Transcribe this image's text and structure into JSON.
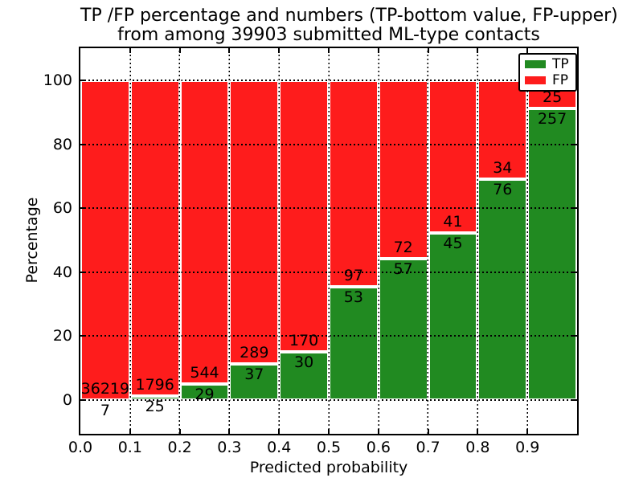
{
  "title": {
    "line1": "TP /FP percentage and numbers (TP-bottom value, FP-upper)",
    "line2": "from among 39903 submitted ML-type contacts"
  },
  "chart_data": {
    "type": "bar",
    "stacked": true,
    "normalized": "each bin stacked to 100%",
    "total_contacts": 39903,
    "bins": [
      "0.0-0.1",
      "0.1-0.2",
      "0.2-0.3",
      "0.3-0.4",
      "0.4-0.5",
      "0.5-0.6",
      "0.6-0.7",
      "0.7-0.8",
      "0.8-0.9",
      "0.9-1.0"
    ],
    "series": [
      {
        "name": "TP",
        "color": "#218a21",
        "counts": [
          7,
          25,
          29,
          37,
          30,
          53,
          57,
          45,
          76,
          257
        ]
      },
      {
        "name": "FP",
        "color": "#fe1c1c",
        "counts": [
          36219,
          1796,
          544,
          289,
          170,
          97,
          72,
          41,
          34,
          25
        ]
      }
    ],
    "tp_percent_per_bin": [
      0.02,
      1.37,
      5.06,
      11.35,
      15.0,
      35.33,
      44.19,
      52.33,
      69.09,
      91.13
    ],
    "xlabel": "Predicted probability",
    "ylabel": "Percentage",
    "xtick_labels": [
      "0.0",
      "0.1",
      "0.2",
      "0.3",
      "0.4",
      "0.5",
      "0.6",
      "0.7",
      "0.8",
      "0.9"
    ],
    "yticks": [
      0,
      20,
      40,
      60,
      80,
      100
    ],
    "xlim": [
      0.0,
      1.0
    ],
    "ylim": [
      -10.6,
      110.0
    ],
    "grid": "dotted black, both axes",
    "legend": {
      "position": "upper right",
      "entries": [
        {
          "label": "TP",
          "color": "#218a21"
        },
        {
          "label": "FP",
          "color": "#fe1c1c"
        }
      ]
    }
  }
}
